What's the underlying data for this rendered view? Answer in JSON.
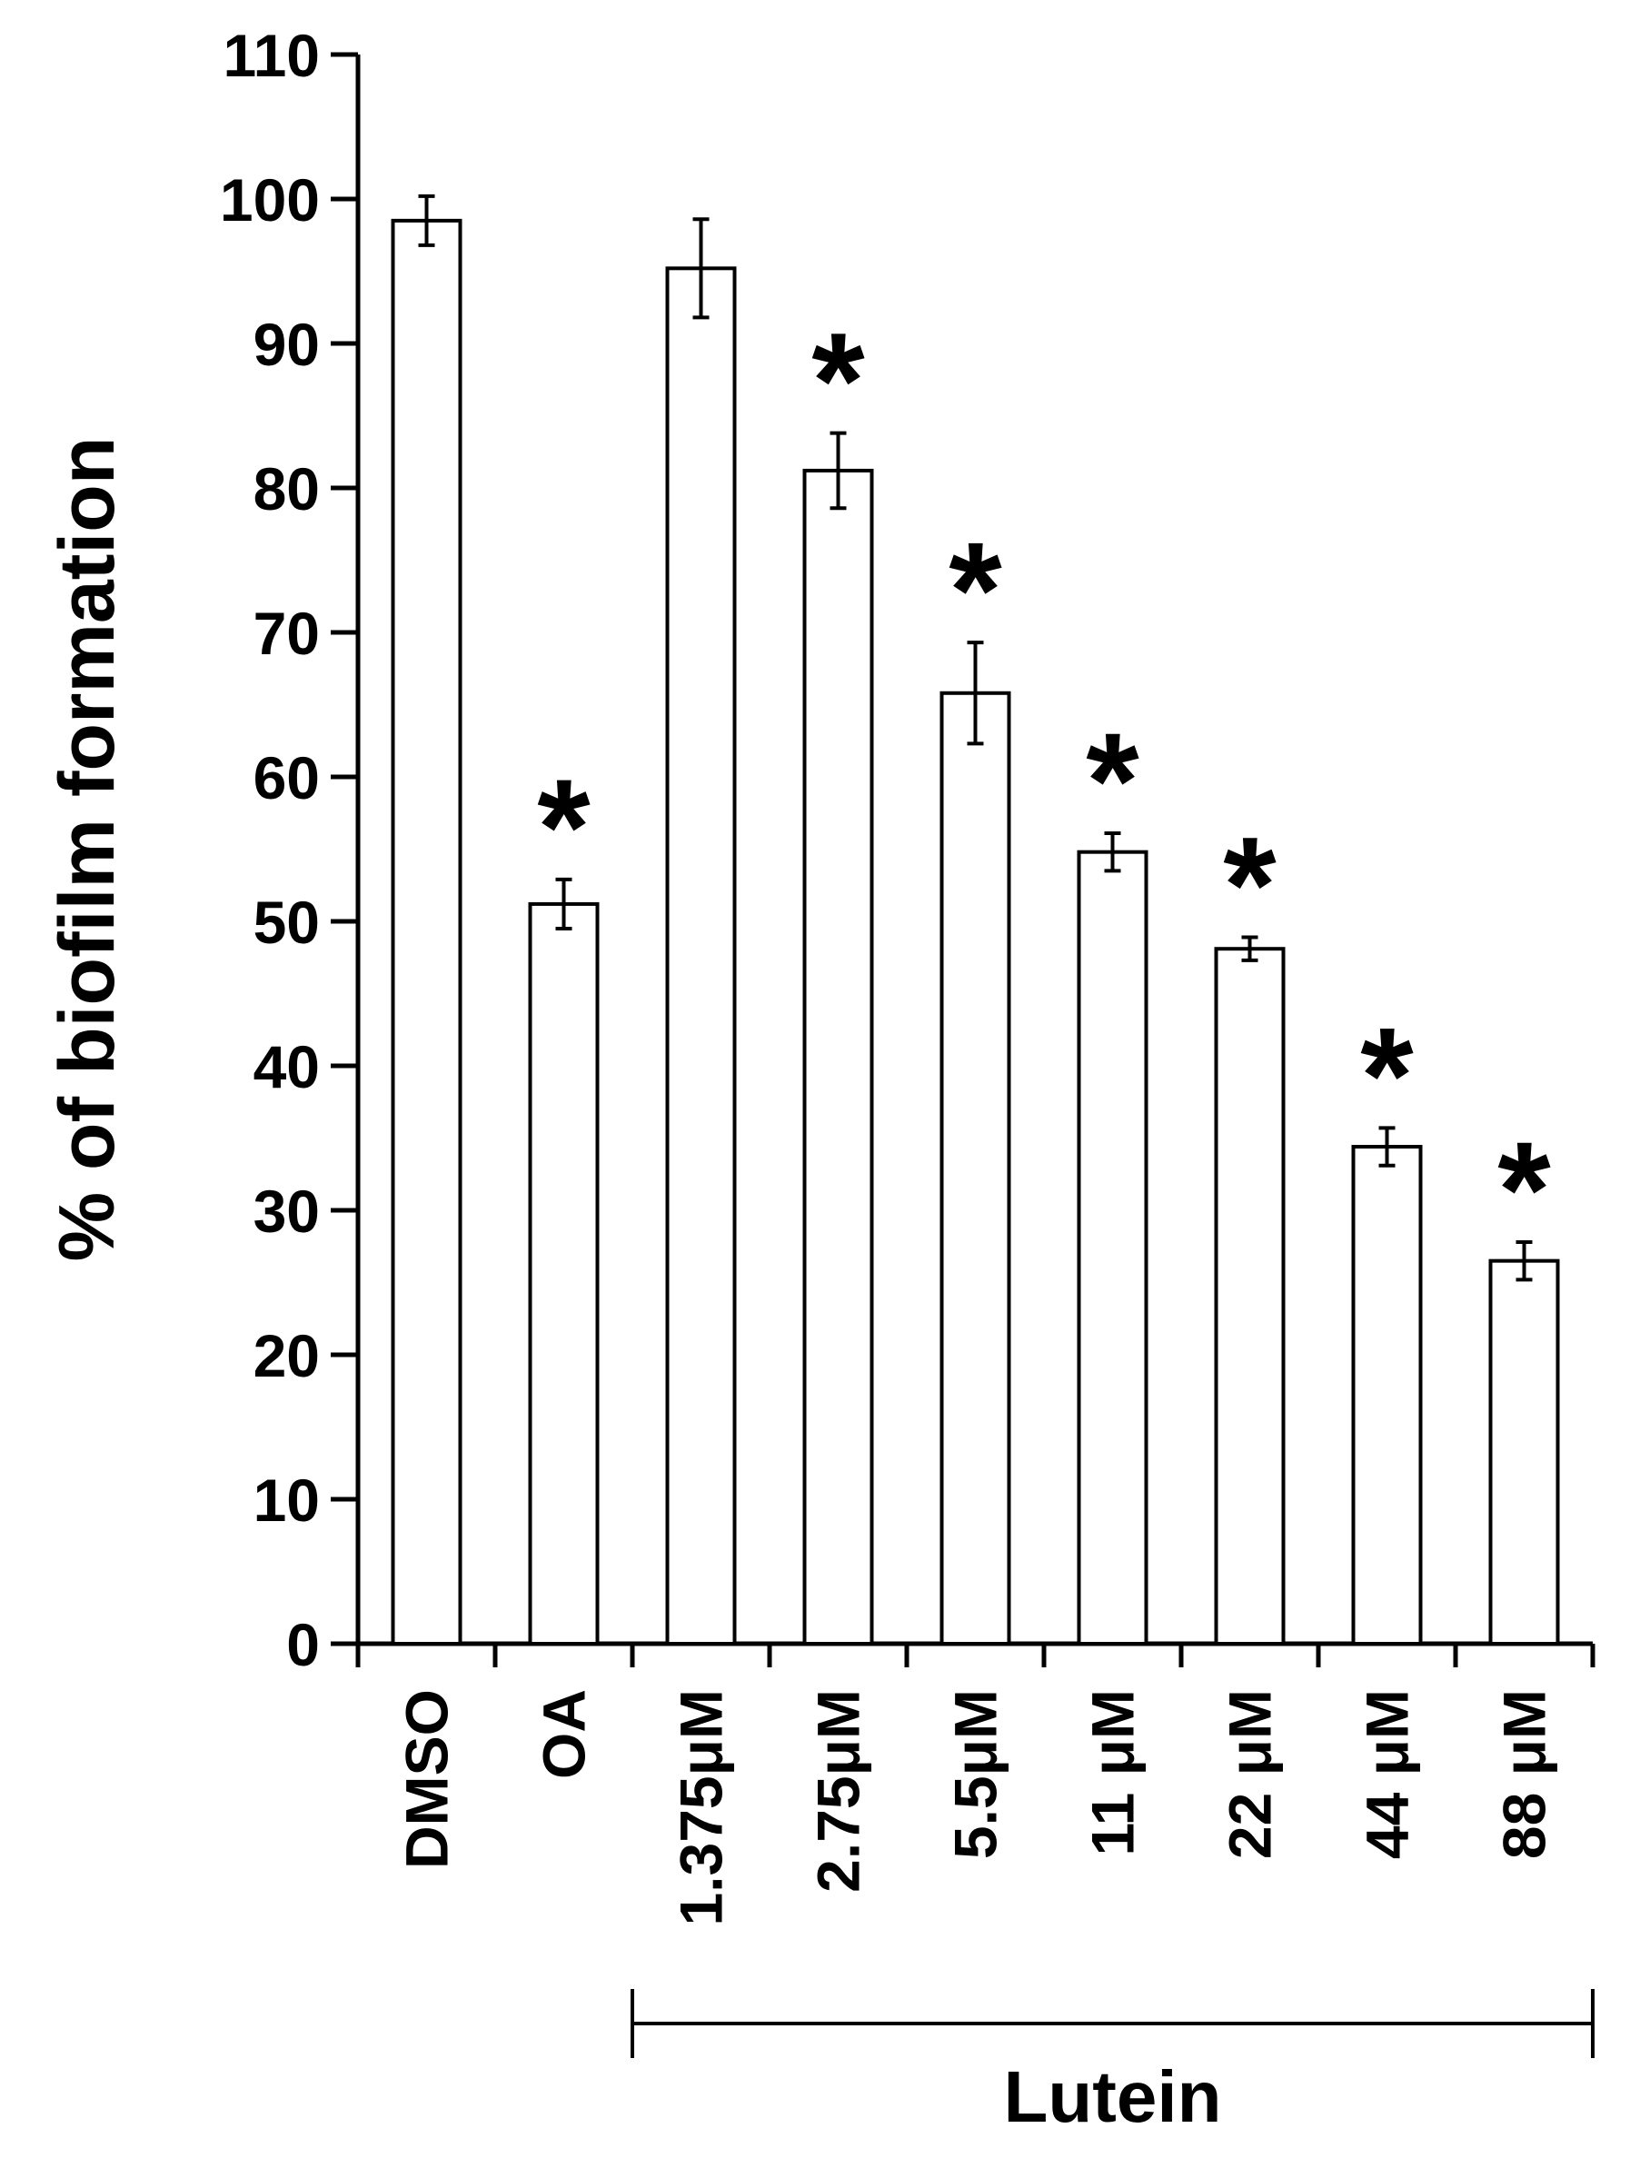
{
  "chart_data": {
    "type": "bar",
    "title": "",
    "xlabel": "",
    "ylabel": "% of biofilm formation",
    "ylim": [
      0,
      110
    ],
    "yticks": [
      0,
      10,
      20,
      30,
      40,
      50,
      60,
      70,
      80,
      90,
      100,
      110
    ],
    "grid": false,
    "legend": "none",
    "categories": [
      "DMSO",
      "OA",
      "1.375μM",
      "2.75μM",
      "5.5μM",
      "11 μM",
      "22 μM",
      "44 μM",
      "88 μM"
    ],
    "values": [
      98.5,
      51.2,
      95.2,
      81.2,
      65.8,
      54.8,
      48.1,
      34.4,
      26.5
    ],
    "errors": [
      1.7,
      1.7,
      3.4,
      2.6,
      3.5,
      1.3,
      0.8,
      1.3,
      1.3
    ],
    "significance": [
      "",
      "*",
      "",
      "*",
      "*",
      "*",
      "*",
      "*",
      "*"
    ],
    "group_bracket": {
      "label": "Lutein",
      "from_category": "1.375μM",
      "to_category": "88 μM"
    },
    "colors": {
      "bar_fill": "#ffffff",
      "bar_stroke": "#000000",
      "axis": "#000000"
    }
  }
}
